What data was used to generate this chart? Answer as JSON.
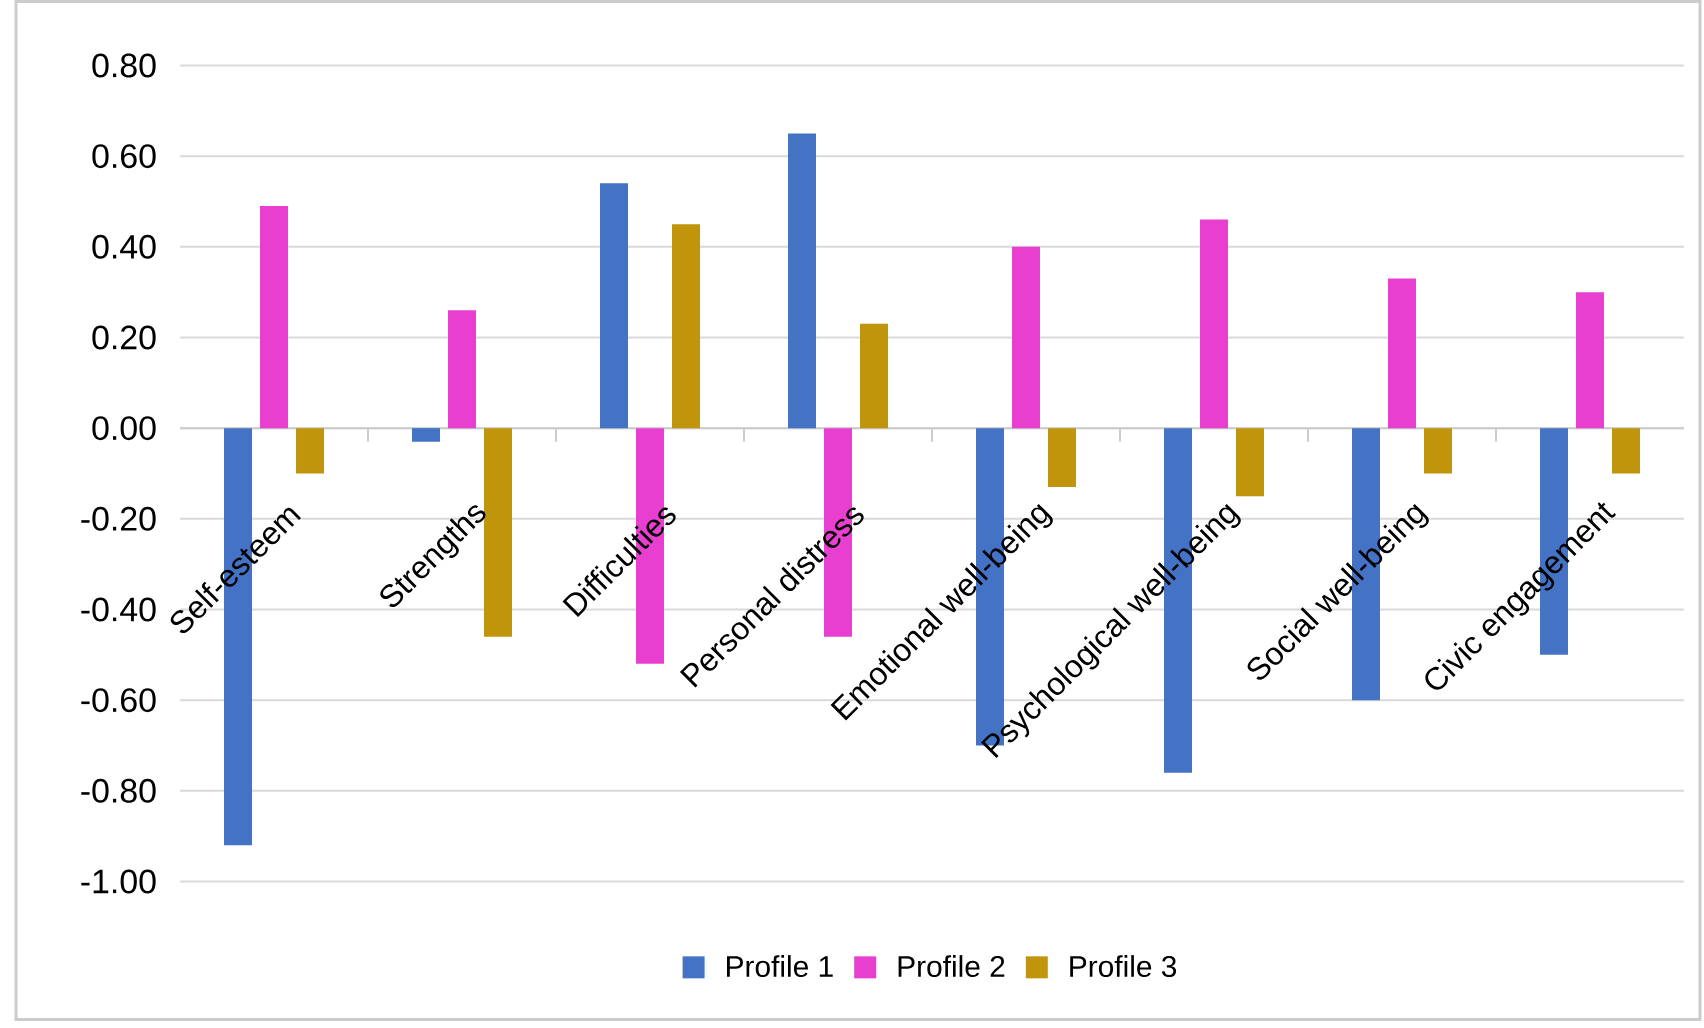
{
  "chart_data": {
    "type": "bar",
    "categories": [
      "Self-esteem",
      "Strengths",
      "Difficulties",
      "Personal distress",
      "Emotional well-being",
      "Psychological well-being",
      "Social well-being",
      "Civic engagement"
    ],
    "series": [
      {
        "name": "Profile 1",
        "color": "#4472c4",
        "values": [
          -0.92,
          -0.03,
          0.54,
          0.65,
          -0.7,
          -0.76,
          -0.6,
          -0.5
        ]
      },
      {
        "name": "Profile 2",
        "color": "#e83fd0",
        "values": [
          0.49,
          0.26,
          -0.52,
          -0.46,
          0.4,
          0.46,
          0.33,
          0.3
        ]
      },
      {
        "name": "Profile 3",
        "color": "#c0950c",
        "values": [
          -0.1,
          -0.46,
          0.45,
          0.23,
          -0.13,
          -0.15,
          -0.1,
          -0.1
        ]
      }
    ],
    "ylim": [
      -1.0,
      0.8
    ],
    "yticks": [
      {
        "value": -1.0,
        "label": "-1.00"
      },
      {
        "value": -0.8,
        "label": "-0.80"
      },
      {
        "value": -0.6,
        "label": "-0.60"
      },
      {
        "value": -0.4,
        "label": "-0.40"
      },
      {
        "value": -0.2,
        "label": "-0.20"
      },
      {
        "value": 0.0,
        "label": "0.00"
      },
      {
        "value": 0.2,
        "label": "0.20"
      },
      {
        "value": 0.4,
        "label": "0.40"
      },
      {
        "value": 0.6,
        "label": "0.60"
      },
      {
        "value": 0.8,
        "label": "0.80"
      }
    ],
    "grid": "y",
    "legend": "bottom"
  }
}
